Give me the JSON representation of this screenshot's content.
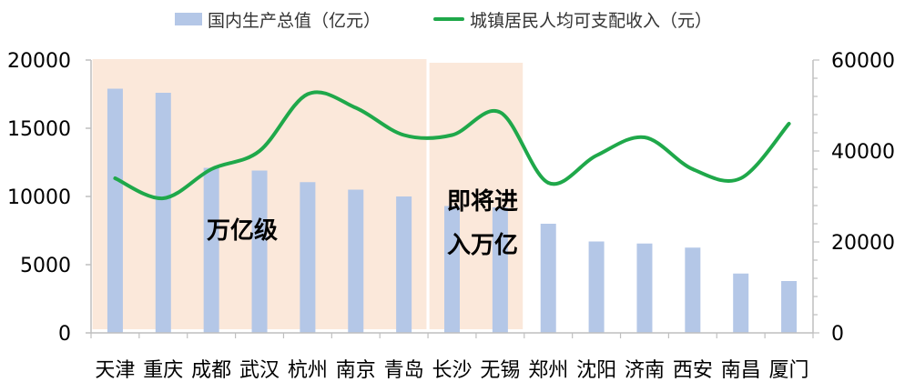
{
  "chart_data": {
    "type": "bar",
    "categories": [
      "天津",
      "重庆",
      "成都",
      "武汉",
      "杭州",
      "南京",
      "青岛",
      "长沙",
      "无锡",
      "郑州",
      "沈阳",
      "济南",
      "西安",
      "南昌",
      "厦门"
    ],
    "series": [
      {
        "name": "国内生产总值（亿元）",
        "type": "bar",
        "axis": "left",
        "values": [
          17900,
          17600,
          12100,
          11900,
          11050,
          10500,
          10000,
          9300,
          9200,
          8000,
          6700,
          6550,
          6250,
          4350,
          3800
        ]
      },
      {
        "name": "城镇居民人均可支配收入（元）",
        "type": "line",
        "axis": "right",
        "values": [
          34000,
          29600,
          36000,
          40000,
          52500,
          49500,
          43500,
          43500,
          48500,
          33000,
          39000,
          43000,
          36000,
          34000,
          46000
        ]
      }
    ],
    "y_left": {
      "min": 0,
      "max": 20000,
      "ticks": [
        "0",
        "5000",
        "10000",
        "15000",
        "20000"
      ]
    },
    "y_right": {
      "min": 0,
      "max": 60000,
      "ticks": [
        "0",
        "20000",
        "40000",
        "60000"
      ]
    },
    "highlight_regions": [
      {
        "label": "万亿级",
        "from_category": "天津",
        "to_category": "青岛"
      },
      {
        "label_line1": "即将进",
        "label_line2": "入万亿",
        "from_category": "长沙",
        "to_category": "无锡"
      }
    ],
    "legend_position": "top",
    "colors": {
      "bar": "#b4c7e7",
      "line": "#1fa84a",
      "region": "#fbe5d6",
      "axis": "#bfbfbf",
      "text": "#000000"
    }
  }
}
